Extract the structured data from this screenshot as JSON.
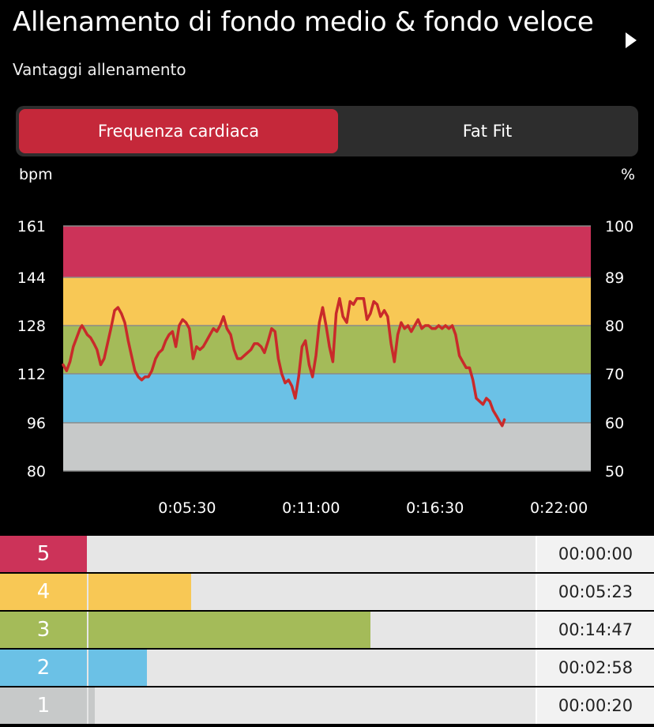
{
  "header": {
    "title": "Allenamento di fondo medio & fondo veloce",
    "subtitle": "Vantaggi allenamento"
  },
  "tabs": [
    {
      "label": "Frequenza cardiaca",
      "active": true
    },
    {
      "label": "Fat Fit",
      "active": false
    }
  ],
  "units": {
    "left": "bpm",
    "right": "%"
  },
  "colors": {
    "zone5": "#cc3359",
    "zone4": "#f8c855",
    "zone3": "#a4bb59",
    "zone2": "#6bc1e6",
    "zone1": "#c7c9c9",
    "line": "#c92a2a",
    "accent": "#c5283a"
  },
  "chart_data": {
    "type": "line",
    "y_left_ticks": [
      "161",
      "144",
      "128",
      "112",
      "96",
      "80"
    ],
    "y_right_ticks": [
      "100",
      "89",
      "80",
      "70",
      "60",
      "50"
    ],
    "x_tick_labels": [
      "0:05:30",
      "0:11:00",
      "0:16:30",
      "0:22:00"
    ],
    "x_ticks_sec": [
      330,
      660,
      990,
      1320
    ],
    "x_range_sec": [
      0,
      1405
    ],
    "ylim": [
      80,
      161
    ],
    "zones": [
      {
        "zone": 5,
        "from": 144,
        "to": 161
      },
      {
        "zone": 4,
        "from": 128,
        "to": 144
      },
      {
        "zone": 3,
        "from": 112,
        "to": 128
      },
      {
        "zone": 2,
        "from": 96,
        "to": 112
      },
      {
        "zone": 1,
        "from": 80,
        "to": 96
      }
    ],
    "series": [
      {
        "points": [
          [
            0,
            115
          ],
          [
            9,
            113
          ],
          [
            18,
            116
          ],
          [
            27,
            121
          ],
          [
            36,
            124
          ],
          [
            45,
            127
          ],
          [
            50,
            128
          ],
          [
            55,
            127
          ],
          [
            64,
            125
          ],
          [
            73,
            124
          ],
          [
            82,
            122
          ],
          [
            90,
            120
          ],
          [
            100,
            115
          ],
          [
            109,
            117
          ],
          [
            118,
            122
          ],
          [
            127,
            127
          ],
          [
            137,
            133
          ],
          [
            146,
            134
          ],
          [
            155,
            132
          ],
          [
            164,
            129
          ],
          [
            173,
            123
          ],
          [
            182,
            118
          ],
          [
            191,
            113
          ],
          [
            200,
            111
          ],
          [
            209,
            110
          ],
          [
            218,
            111
          ],
          [
            227,
            111
          ],
          [
            236,
            113
          ],
          [
            246,
            117
          ],
          [
            255,
            119
          ],
          [
            264,
            120
          ],
          [
            273,
            123
          ],
          [
            282,
            125
          ],
          [
            291,
            126
          ],
          [
            300,
            121
          ],
          [
            309,
            128
          ],
          [
            318,
            130
          ],
          [
            327,
            129
          ],
          [
            336,
            127
          ],
          [
            346,
            117
          ],
          [
            355,
            121
          ],
          [
            364,
            120
          ],
          [
            373,
            121
          ],
          [
            382,
            123
          ],
          [
            391,
            125
          ],
          [
            400,
            127
          ],
          [
            409,
            126
          ],
          [
            418,
            128
          ],
          [
            427,
            131
          ],
          [
            436,
            127
          ],
          [
            446,
            125
          ],
          [
            455,
            120
          ],
          [
            464,
            117
          ],
          [
            473,
            117
          ],
          [
            482,
            118
          ],
          [
            491,
            119
          ],
          [
            500,
            120
          ],
          [
            509,
            122
          ],
          [
            518,
            122
          ],
          [
            527,
            121
          ],
          [
            536,
            119
          ],
          [
            546,
            123
          ],
          [
            555,
            127
          ],
          [
            564,
            126
          ],
          [
            573,
            117
          ],
          [
            582,
            112
          ],
          [
            591,
            109
          ],
          [
            600,
            110
          ],
          [
            609,
            108
          ],
          [
            618,
            104
          ],
          [
            627,
            111
          ],
          [
            636,
            121
          ],
          [
            645,
            123
          ],
          [
            655,
            115
          ],
          [
            664,
            111
          ],
          [
            673,
            118
          ],
          [
            682,
            129
          ],
          [
            691,
            134
          ],
          [
            700,
            128
          ],
          [
            709,
            121
          ],
          [
            718,
            116
          ],
          [
            727,
            132
          ],
          [
            736,
            137
          ],
          [
            745,
            131
          ],
          [
            755,
            129
          ],
          [
            764,
            136
          ],
          [
            773,
            135
          ],
          [
            782,
            137
          ],
          [
            791,
            137
          ],
          [
            800,
            137
          ],
          [
            809,
            130
          ],
          [
            818,
            132
          ],
          [
            827,
            136
          ],
          [
            836,
            135
          ],
          [
            845,
            131
          ],
          [
            855,
            133
          ],
          [
            864,
            131
          ],
          [
            873,
            122
          ],
          [
            882,
            116
          ],
          [
            891,
            125
          ],
          [
            900,
            129
          ],
          [
            909,
            127
          ],
          [
            918,
            128
          ],
          [
            927,
            126
          ],
          [
            936,
            128
          ],
          [
            945,
            130
          ],
          [
            955,
            127
          ],
          [
            964,
            128
          ],
          [
            973,
            128
          ],
          [
            982,
            127
          ],
          [
            991,
            127
          ],
          [
            1000,
            128
          ],
          [
            1009,
            127
          ],
          [
            1018,
            128
          ],
          [
            1027,
            127
          ],
          [
            1036,
            128
          ],
          [
            1045,
            125
          ],
          [
            1055,
            118
          ],
          [
            1064,
            116
          ],
          [
            1073,
            114
          ],
          [
            1082,
            114
          ],
          [
            1091,
            110
          ],
          [
            1100,
            104
          ],
          [
            1109,
            103
          ],
          [
            1118,
            102
          ],
          [
            1127,
            104
          ],
          [
            1136,
            103
          ],
          [
            1145,
            100
          ],
          [
            1155,
            98
          ],
          [
            1164,
            96
          ],
          [
            1169,
            95
          ],
          [
            1175,
            97
          ]
        ]
      }
    ]
  },
  "zone_table": [
    {
      "zone": "5",
      "time": "00:00:00",
      "fraction": 0.0
    },
    {
      "zone": "4",
      "time": "00:05:23",
      "fraction": 0.23
    },
    {
      "zone": "3",
      "time": "00:14:47",
      "fraction": 0.63
    },
    {
      "zone": "2",
      "time": "00:02:58",
      "fraction": 0.13
    },
    {
      "zone": "1",
      "time": "00:00:20",
      "fraction": 0.015
    }
  ]
}
